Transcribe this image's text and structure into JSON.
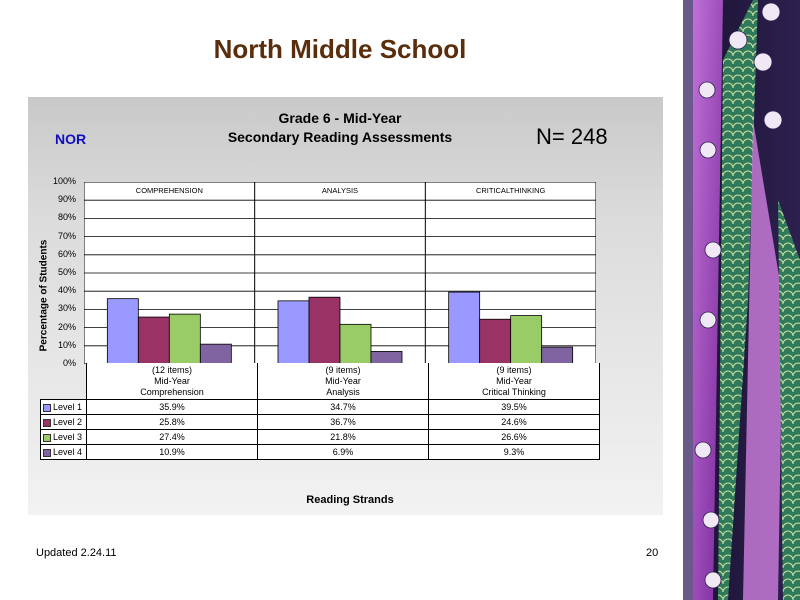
{
  "slide": {
    "title": "North Middle School",
    "footer_left": "Updated  2.24.11",
    "page_number": "20"
  },
  "chart_header": {
    "line1": "Grade 6 - Mid-Year",
    "line2": "Secondary Reading Assessments",
    "school_code": "NOR",
    "n_label": "N=  248"
  },
  "chart_data": {
    "type": "bar",
    "ylabel": "Percentage of Students",
    "xlabel": "Reading Strands",
    "ylim": [
      0,
      100
    ],
    "yticks": [
      "0%",
      "10%",
      "20%",
      "30%",
      "40%",
      "50%",
      "60%",
      "70%",
      "80%",
      "90%",
      "100%"
    ],
    "grid": true,
    "panel_headers": [
      "COMPREHENSION",
      "ANALYSIS",
      "CRITICALTHINKING"
    ],
    "categories": [
      {
        "items": "(12 items)",
        "period": "Mid-Year",
        "name": "Comprehension"
      },
      {
        "items": "(9 items)",
        "period": "Mid-Year",
        "name": "Analysis"
      },
      {
        "items": "(9 items)",
        "period": "Mid-Year",
        "name": "Critical Thinking"
      }
    ],
    "series": [
      {
        "name": "Level 1",
        "color": "#9999ff",
        "values": [
          35.9,
          34.7,
          39.5
        ],
        "labels": [
          "35.9%",
          "34.7%",
          "39.5%"
        ]
      },
      {
        "name": "Level 2",
        "color": "#993366",
        "values": [
          25.8,
          36.7,
          24.6
        ],
        "labels": [
          "25.8%",
          "36.7%",
          "24.6%"
        ]
      },
      {
        "name": "Level 3",
        "color": "#99cc66",
        "values": [
          27.4,
          21.8,
          26.6
        ],
        "labels": [
          "27.4%",
          "21.8%",
          "26.6%"
        ]
      },
      {
        "name": "Level 4",
        "color": "#8064a2",
        "values": [
          10.9,
          6.9,
          9.3
        ],
        "labels": [
          "10.9%",
          "6.9%",
          "9.3%"
        ]
      }
    ]
  }
}
